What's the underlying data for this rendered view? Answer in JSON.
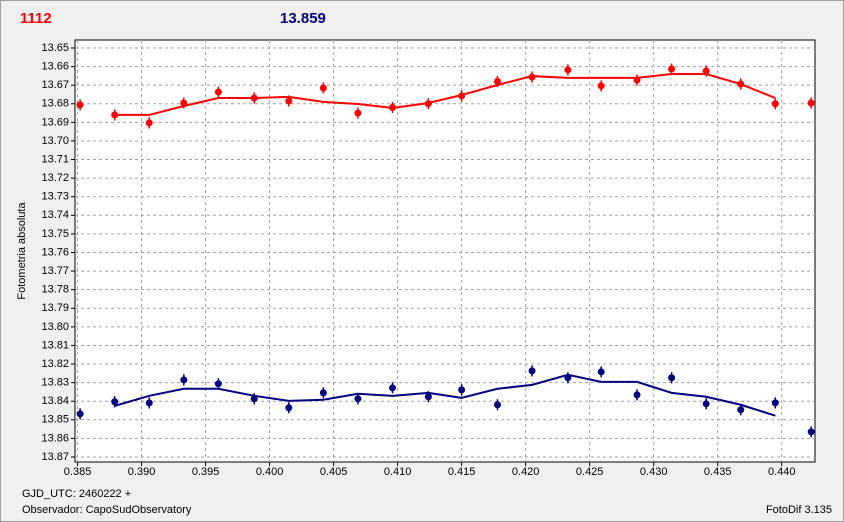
{
  "chart_data": {
    "type": "scatter",
    "header_left": "1112",
    "header_right": "13.859",
    "ylabel": "Fotometria absoluta",
    "footer_left": [
      "GJD_UTC: 2460222 +",
      "Observador: CapoSudObservatory"
    ],
    "footer_right": "FotoDif 3.135",
    "invert_y": true,
    "grid": true,
    "xlim": [
      0.3848,
      0.4426
    ],
    "ylim": [
      13.6457,
      13.8727
    ],
    "xticks": [
      0.385,
      {
        "value": 0.39,
        "label": "0.390"
      },
      0.395,
      {
        "value": 0.4,
        "label": "0.400"
      },
      0.405,
      {
        "value": 0.41,
        "label": "0.410"
      },
      0.415,
      {
        "value": 0.42,
        "label": "0.420"
      },
      0.425,
      {
        "value": 0.43,
        "label": "0.430"
      },
      0.435,
      {
        "value": 0.44,
        "label": "0.440"
      }
    ],
    "yticks": [
      13.65,
      13.66,
      13.67,
      13.68,
      13.69,
      {
        "value": 13.7,
        "label": "13.70"
      },
      13.71,
      13.72,
      13.73,
      13.74,
      13.75,
      13.76,
      13.77,
      13.78,
      13.79,
      {
        "value": 13.8,
        "label": "13.80"
      },
      13.81,
      13.82,
      13.83,
      13.84,
      13.85,
      13.86,
      13.87
    ],
    "x": [
      0.3852,
      0.3879,
      0.3906,
      0.3933,
      0.396,
      0.3988,
      0.4015,
      0.4042,
      0.4069,
      0.4096,
      0.4124,
      0.415,
      0.4178,
      0.4205,
      0.4233,
      0.4259,
      0.4287,
      0.4314,
      0.4341,
      0.4368,
      0.4395,
      0.4423
    ],
    "series": [
      {
        "color": "#ff0000",
        "error": 0.003,
        "values": [
          13.6806,
          13.686,
          13.6903,
          13.6796,
          13.6737,
          13.6769,
          13.6785,
          13.6715,
          13.685,
          13.682,
          13.68,
          13.6758,
          13.668,
          13.6656,
          13.6618,
          13.6704,
          13.6672,
          13.6613,
          13.6624,
          13.6694,
          13.68,
          13.6796
        ]
      },
      {
        "color": "#000080",
        "error": 0.003,
        "values": [
          13.8468,
          13.8403,
          13.8409,
          13.8285,
          13.8306,
          13.8387,
          13.8435,
          13.8355,
          13.8387,
          13.8328,
          13.8376,
          13.8339,
          13.8419,
          13.8237,
          13.8274,
          13.8242,
          13.8366,
          13.8274,
          13.8414,
          13.8446,
          13.8409,
          13.8565
        ]
      }
    ],
    "fit_x": [
      0.3879,
      0.3906,
      0.3933,
      0.396,
      0.3988,
      0.4015,
      0.4042,
      0.4069,
      0.4096,
      0.4124,
      0.415,
      0.4178,
      0.4205,
      0.4233,
      0.4259,
      0.4287,
      0.4314,
      0.4341,
      0.4368,
      0.4395
    ],
    "fits": [
      {
        "color": "#ff0000",
        "values": [
          13.686,
          13.686,
          13.6812,
          13.6769,
          13.6769,
          13.6763,
          13.679,
          13.6801,
          13.6823,
          13.6796,
          13.6753,
          13.6699,
          13.6651,
          13.6661,
          13.6661,
          13.6661,
          13.664,
          13.664,
          13.6694,
          13.6769
        ]
      },
      {
        "color": "#000080",
        "values": [
          13.8425,
          13.8371,
          13.8333,
          13.8333,
          13.8371,
          13.8398,
          13.8392,
          13.836,
          13.8371,
          13.8355,
          13.8382,
          13.8333,
          13.8312,
          13.8258,
          13.8296,
          13.8296,
          13.8355,
          13.8376,
          13.8419,
          13.8478
        ]
      }
    ]
  }
}
